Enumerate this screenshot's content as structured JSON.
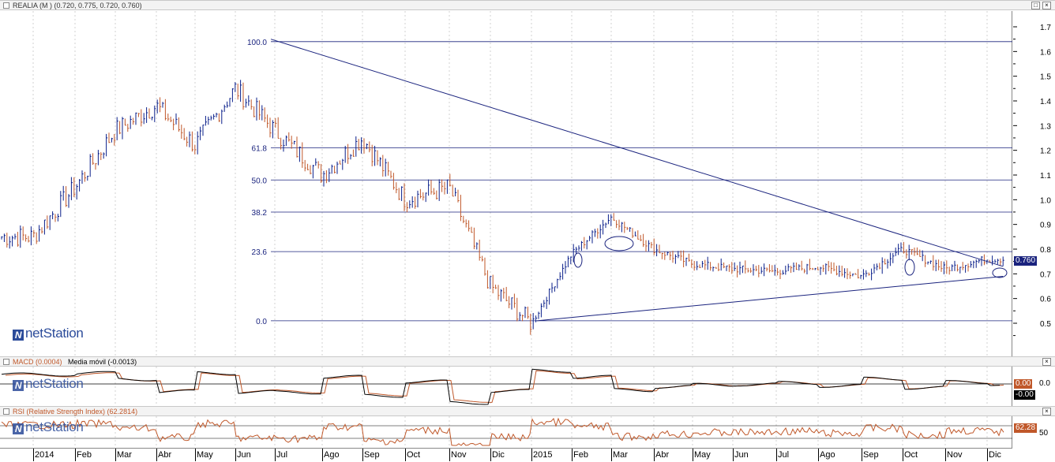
{
  "main": {
    "title": "REALIA (M ) (0.720, 0.775, 0.720, 0.760)",
    "last_price": "0.760",
    "brand": "netStation",
    "yticks": [
      "1.7",
      "1.6",
      "1.5",
      "1.4",
      "1.3",
      "1.2",
      "1.1",
      "1.0",
      "0.9",
      "0.8",
      "0.7",
      "0.6",
      "0.5"
    ],
    "fib_labels": [
      "100.0",
      "61.8",
      "50.0",
      "38.2",
      "23.6",
      "0.0"
    ]
  },
  "macd": {
    "title": "MACD (0.0004)",
    "ma_title": "Media móvil (-0.0013)",
    "value1": "0.00",
    "value2": "-0.00",
    "tick": "0.0"
  },
  "rsi": {
    "title": "RSI (Relative Strength Index) (62.2814)",
    "value": "62.28",
    "tick": "50"
  },
  "xaxis": {
    "labels": [
      "2014",
      "Feb",
      "Mar",
      "Abr",
      "May",
      "Jun",
      "Jul",
      "Ago",
      "Sep",
      "Oct",
      "Nov",
      "Dic",
      "2015",
      "Feb",
      "Mar",
      "Abr",
      "May",
      "Jun",
      "Jul",
      "Ago",
      "Sep",
      "Oct",
      "Nov",
      "Dic"
    ]
  },
  "buttons": {
    "restore": "□",
    "close": "×"
  },
  "colors": {
    "up": "#0a1f8a",
    "down": "#c0582a",
    "line": "#1a237e",
    "rsi": "#c0582a",
    "macd_signal": "#c0582a"
  },
  "chart_data": [
    {
      "type": "bar",
      "title": "REALIA (M ) (0.720, 0.775, 0.720, 0.760)",
      "ylim": [
        0.5,
        1.7
      ],
      "last_close": 0.76,
      "x": [
        "2014-01",
        "2014-02",
        "2014-03",
        "2014-04",
        "2014-05",
        "2014-06",
        "2014-07",
        "2014-08",
        "2014-09",
        "2014-10",
        "2014-11",
        "2014-12",
        "2015-01",
        "2015-02",
        "2015-03",
        "2015-04",
        "2015-05",
        "2015-06",
        "2015-07",
        "2015-08",
        "2015-09",
        "2015-10",
        "2015-11",
        "2015-12"
      ],
      "close": [
        0.85,
        1.05,
        1.28,
        1.38,
        1.22,
        1.45,
        1.28,
        1.1,
        1.25,
        1.0,
        1.05,
        0.65,
        0.5,
        0.78,
        0.93,
        0.8,
        0.74,
        0.72,
        0.71,
        0.73,
        0.69,
        0.8,
        0.72,
        0.76
      ],
      "fibonacci_levels": [
        {
          "label": "100.0",
          "value": 1.64
        },
        {
          "label": "61.8",
          "value": 1.21
        },
        {
          "label": "50.0",
          "value": 1.08
        },
        {
          "label": "38.2",
          "value": 0.95
        },
        {
          "label": "23.6",
          "value": 0.79
        },
        {
          "label": "0.0",
          "value": 0.51
        }
      ],
      "trendlines": [
        {
          "from": [
            "2014-06-28",
            1.65
          ],
          "to": [
            "2015-12-20",
            0.73
          ]
        },
        {
          "from": [
            "2015-01-05",
            0.51
          ],
          "to": [
            "2015-12-20",
            0.69
          ]
        }
      ]
    },
    {
      "type": "line",
      "title": "MACD (0.0004)",
      "series": [
        {
          "name": "MACD",
          "last": 0.0004
        },
        {
          "name": "Media móvil",
          "last": -0.0013
        }
      ]
    },
    {
      "type": "line",
      "title": "RSI (Relative Strength Index) (62.2814)",
      "series": [
        {
          "name": "RSI",
          "last": 62.2814
        }
      ]
    }
  ]
}
